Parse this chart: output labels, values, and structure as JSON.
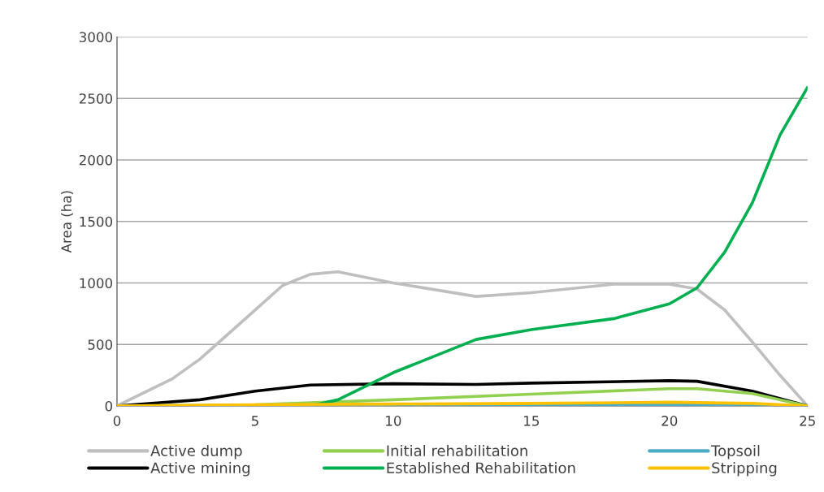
{
  "chart_data": {
    "type": "line",
    "ylabel": "Area (ha)",
    "xlim": [
      0,
      25
    ],
    "ylim": [
      0,
      3000
    ],
    "xticks": [
      0,
      5,
      10,
      15,
      20,
      25
    ],
    "yticks": [
      0,
      500,
      1000,
      1500,
      2000,
      2500,
      3000
    ],
    "grid": "y",
    "legend": "bottom",
    "marker": "none",
    "line_style": "solid",
    "series": [
      {
        "name": "Active dump",
        "color": "#bfbfbf",
        "x": [
          0,
          2,
          3,
          5,
          6,
          7,
          8,
          10,
          13,
          15,
          18,
          20,
          21,
          22,
          23,
          24,
          25
        ],
        "values": [
          0,
          220,
          380,
          780,
          980,
          1070,
          1090,
          1000,
          890,
          920,
          990,
          990,
          950,
          780,
          520,
          250,
          0
        ]
      },
      {
        "name": "Active mining",
        "color": "#000000",
        "x": [
          0,
          3,
          5,
          7,
          10,
          13,
          15,
          20,
          21,
          23,
          25
        ],
        "values": [
          0,
          50,
          120,
          170,
          180,
          175,
          185,
          205,
          200,
          120,
          0
        ]
      },
      {
        "name": "Initial rehabilitation",
        "color": "#92d050",
        "x": [
          0,
          5,
          7,
          10,
          15,
          20,
          21,
          23,
          25
        ],
        "values": [
          0,
          10,
          25,
          50,
          95,
          140,
          140,
          100,
          0
        ]
      },
      {
        "name": "Established Rehabilitation",
        "color": "#00b050",
        "x": [
          0,
          7,
          8,
          10,
          13,
          15,
          18,
          20,
          21,
          22,
          23,
          24,
          25
        ],
        "values": [
          0,
          0,
          50,
          270,
          540,
          620,
          710,
          830,
          960,
          1250,
          1650,
          2200,
          2590
        ]
      },
      {
        "name": "Topsoil",
        "color": "#4bacc6",
        "x": [
          0,
          10,
          20,
          25
        ],
        "values": [
          0,
          5,
          10,
          0
        ]
      },
      {
        "name": "Stripping",
        "color": "#ffc000",
        "x": [
          0,
          5,
          10,
          15,
          20,
          23,
          25
        ],
        "values": [
          0,
          10,
          15,
          20,
          30,
          20,
          0
        ]
      }
    ]
  }
}
